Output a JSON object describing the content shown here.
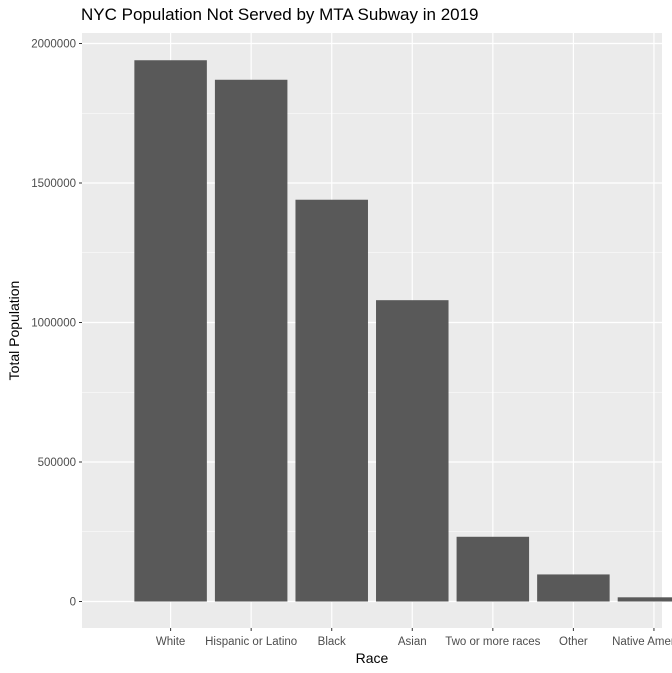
{
  "chart_data": {
    "type": "bar",
    "title": "NYC Population Not Served by MTA Subway in 2019",
    "xlabel": "Race",
    "ylabel": "Total Population",
    "categories": [
      "White",
      "Hispanic or Latino",
      "Black",
      "Asian",
      "Two or more races",
      "Other",
      "Native American"
    ],
    "values": [
      1940000,
      1870000,
      1440000,
      1080000,
      232000,
      97000,
      15000
    ],
    "ylim": [
      0,
      2000000
    ],
    "yticks": [
      0,
      500000,
      1000000,
      1500000,
      2000000
    ],
    "ytick_labels": [
      "0",
      "500000",
      "1000000",
      "1500000",
      "2000000"
    ],
    "grid": true,
    "legend": "none",
    "colors": {
      "bar": "#595959",
      "panel": "#ebebeb",
      "grid": "#ffffff",
      "tick_text": "#4d4d4d"
    }
  }
}
